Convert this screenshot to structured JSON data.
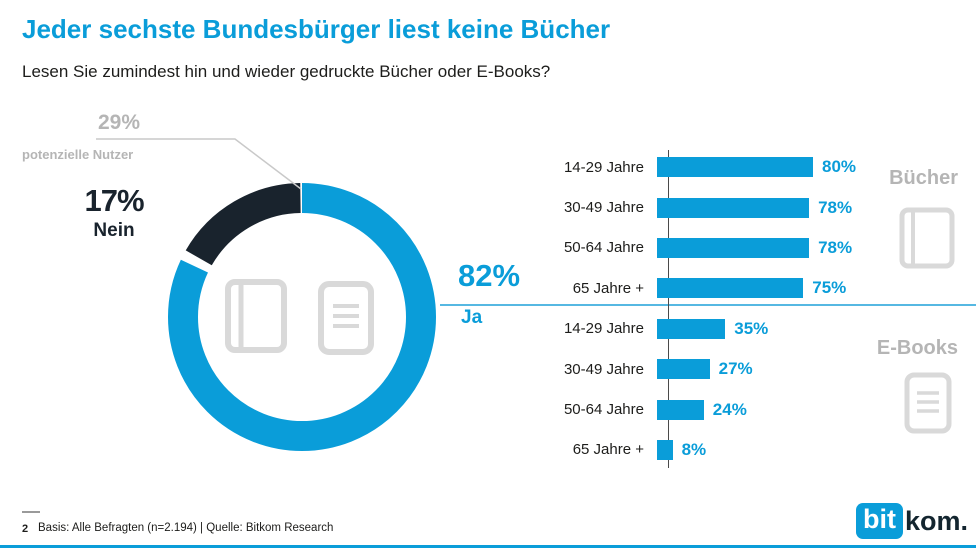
{
  "header": {
    "title": "Jeder sechste Bundesbürger liest keine Bücher",
    "subtitle": "Lesen Sie zumindest hin und wieder gedruckte Bücher oder E-Books?"
  },
  "donut_annotations": {
    "callout_value": "29%",
    "callout_label": "potenzielle Nutzer",
    "nein_value": "17%",
    "nein_label": "Nein",
    "ja_value": "82%",
    "ja_label": "Ja"
  },
  "chart_data": [
    {
      "type": "pie",
      "title": "Lesen Sie zumindest hin und wieder gedruckte Bücher oder E-Books?",
      "slices": [
        {
          "label": "Ja",
          "value": 82,
          "color": "#0a9dd9"
        },
        {
          "label": "Nein",
          "value": 17,
          "color": "#19232d"
        }
      ],
      "annotations": [
        "29% potenzielle Nutzer"
      ],
      "center_icons": [
        "book-icon",
        "tablet-icon"
      ]
    },
    {
      "type": "bar",
      "categories": [
        "14-29 Jahre",
        "30-49 Jahre",
        "50-64 Jahre",
        "65 Jahre +"
      ],
      "series": [
        {
          "name": "Bücher",
          "values": [
            80,
            78,
            78,
            75
          ]
        },
        {
          "name": "E-Books",
          "values": [
            35,
            27,
            24,
            8
          ]
        }
      ],
      "xlim": [
        0,
        100
      ],
      "value_suffix": "%"
    }
  ],
  "footer": {
    "page": "2",
    "source": "Basis: Alle Befragten (n=2.194) | Quelle: Bitkom Research",
    "logo": {
      "bit": "bit",
      "kom": "kom."
    }
  },
  "colors": {
    "accent": "#0a9dd9",
    "dark": "#19232d",
    "gray": "#b5b5b5",
    "icon": "#d9d9d9",
    "text": "#1d1d1b",
    "line": "#c9c9c9",
    "axis": "#4a4a4a",
    "divider": "#56b8e2"
  }
}
